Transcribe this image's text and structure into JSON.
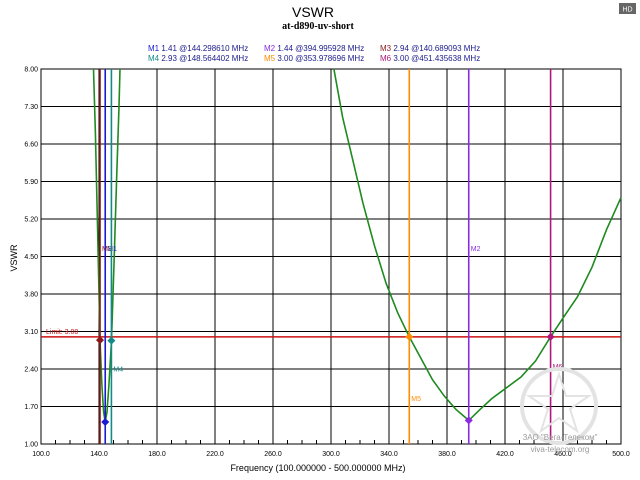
{
  "badge": "HD",
  "watermark": {
    "line1": "ЗАО \"Вега-Телеком\"",
    "line2": "viva-telecom.org"
  },
  "chart_data": {
    "type": "line",
    "title": "VSWR",
    "subtitle": "at-d890-uv-short",
    "xlabel": "Frequency (100.000000 - 500.000000 MHz)",
    "ylabel": "VSWR",
    "xlim": [
      100,
      500
    ],
    "ylim": [
      1.0,
      8.0
    ],
    "x_ticks": [
      100,
      140,
      180,
      220,
      260,
      300,
      340,
      380,
      420,
      460,
      500
    ],
    "x_tick_labels": [
      "100.0",
      "140.0",
      "180.0",
      "220.0",
      "260.0",
      "300.0",
      "340.0",
      "380.0",
      "420.0",
      "460.0",
      "500.0"
    ],
    "y_ticks": [
      1.0,
      1.7,
      2.4,
      3.1,
      3.8,
      4.5,
      5.2,
      5.9,
      6.6,
      7.3,
      8.0
    ],
    "y_tick_labels": [
      "1.00",
      "1.70",
      "2.40",
      "3.10",
      "3.80",
      "4.50",
      "5.20",
      "5.90",
      "6.60",
      "7.30",
      "8.00"
    ],
    "grid": true,
    "colors": {
      "trace": "#1f8a1f",
      "limit": "#cc1111",
      "frame": "#000000"
    },
    "limit_line": {
      "value": 3.0,
      "label": "Limit: 3.00"
    },
    "series": [
      {
        "name": "VSWR",
        "points": [
          [
            136.2,
            8.0
          ],
          [
            137.5,
            6.8
          ],
          [
            139.0,
            5.0
          ],
          [
            140.7,
            2.94
          ],
          [
            142.0,
            2.1
          ],
          [
            143.2,
            1.6
          ],
          [
            144.3,
            1.41
          ],
          [
            145.5,
            1.6
          ],
          [
            146.8,
            2.1
          ],
          [
            148.6,
            2.93
          ],
          [
            150.3,
            4.3
          ],
          [
            152.2,
            6.0
          ],
          [
            153.8,
            7.3
          ],
          [
            154.5,
            8.0
          ],
          [
            302.0,
            8.0
          ],
          [
            308.0,
            7.1
          ],
          [
            315.0,
            6.3
          ],
          [
            322.0,
            5.5
          ],
          [
            330.0,
            4.7
          ],
          [
            338.0,
            4.0
          ],
          [
            346.0,
            3.45
          ],
          [
            354.0,
            3.0
          ],
          [
            362.0,
            2.6
          ],
          [
            370.0,
            2.2
          ],
          [
            378.0,
            1.9
          ],
          [
            386.0,
            1.65
          ],
          [
            395.0,
            1.44
          ],
          [
            403.0,
            1.65
          ],
          [
            411.0,
            1.85
          ],
          [
            421.0,
            2.05
          ],
          [
            431.0,
            2.25
          ],
          [
            441.0,
            2.55
          ],
          [
            451.4,
            3.0
          ],
          [
            460.0,
            3.35
          ],
          [
            470.0,
            3.75
          ],
          [
            480.0,
            4.3
          ],
          [
            490.0,
            5.0
          ],
          [
            500.0,
            5.6
          ]
        ]
      }
    ],
    "markers": [
      {
        "id": "M1",
        "legend": "M1 1.41 @144.298610 MHz",
        "freq": 144.29861,
        "vswr": 1.41,
        "color": "#1a1ad0",
        "label_y": 4.6
      },
      {
        "id": "M2",
        "legend": "M2 1.44 @394.995928 MHz",
        "freq": 394.995928,
        "vswr": 1.44,
        "color": "#8a2be2",
        "label_y": 4.6
      },
      {
        "id": "M3",
        "legend": "M3 2.94 @140.689093 MHz",
        "freq": 140.689093,
        "vswr": 2.94,
        "color": "#8b1a1a",
        "label_y": 4.6
      },
      {
        "id": "M4",
        "legend": "M4 2.93 @148.564402 MHz",
        "freq": 148.564402,
        "vswr": 2.93,
        "color": "#138a8a",
        "label_y": 2.35
      },
      {
        "id": "M5",
        "legend": "M5 3.00 @353.978696 MHz",
        "freq": 353.978696,
        "vswr": 3.0,
        "color": "#ff8c00",
        "label_y": 1.8
      },
      {
        "id": "M6",
        "legend": "M6 3.00 @451.435638 MHz",
        "freq": 451.435638,
        "vswr": 3.0,
        "color": "#b0177a",
        "label_y": 2.4
      }
    ]
  }
}
